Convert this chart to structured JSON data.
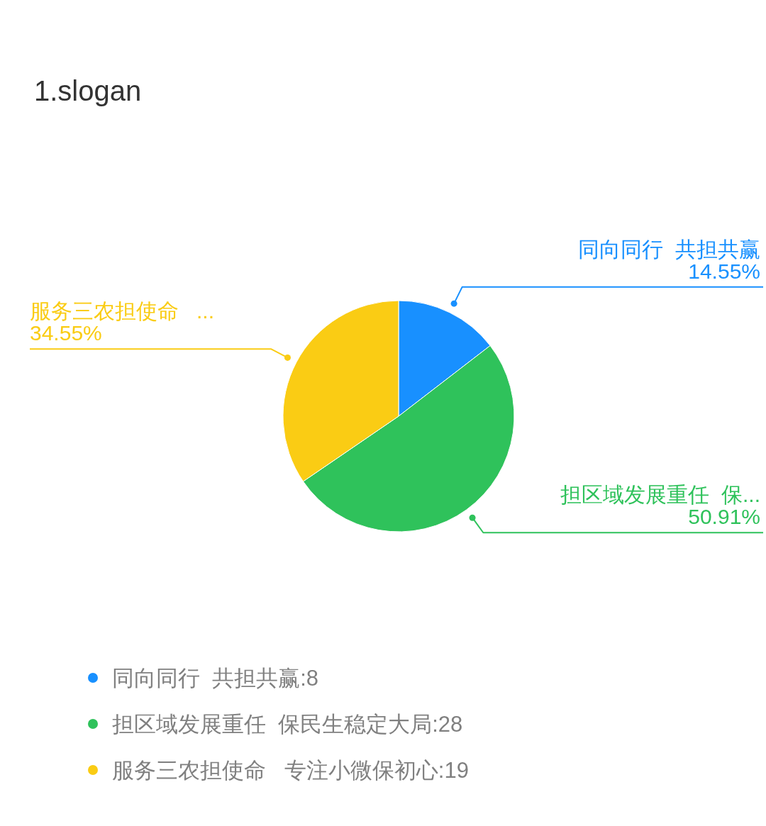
{
  "chart_data": {
    "type": "pie",
    "title": "1.slogan",
    "categories": [
      "同向同行  共担共赢:8",
      "担区域发展重任  保民生稳定大局:28",
      "服务三农担使命   专注小微保初心:19"
    ],
    "values": [
      14.55,
      50.91,
      34.55
    ],
    "colors": [
      "#1890ff",
      "#2fc25b",
      "#facc14"
    ],
    "value_labels": [
      "同向同行  共担共赢\n14.55%",
      "担区域发展重任  保...\n50.91%",
      "服务三农担使命   ...\n34.55%"
    ],
    "legend": "bottom"
  }
}
